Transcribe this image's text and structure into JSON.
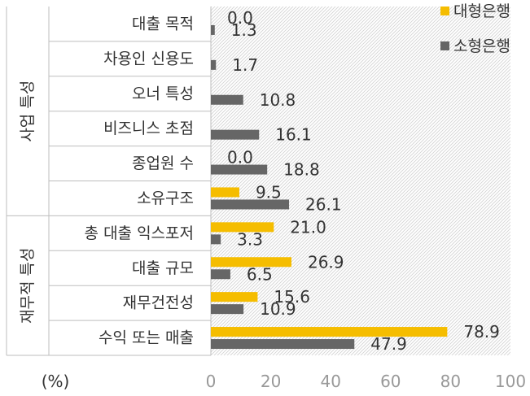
{
  "chart_data": {
    "type": "bar",
    "orientation": "horizontal",
    "unit_label": "(%)",
    "groups": [
      {
        "name": "사업 특성",
        "categories": [
          "대출 목적",
          "차용인 신용도",
          "오너 특성",
          "비즈니스 초점",
          "종업원 수",
          "소유구조"
        ]
      },
      {
        "name": "재무적 특성",
        "categories": [
          "총 대출 익스포저",
          "대출 규모",
          "재무건전성",
          "수익 또는 매출"
        ]
      }
    ],
    "categories": [
      "대출 목적",
      "차용인 신용도",
      "오너 특성",
      "비즈니스 초점",
      "종업원 수",
      "소유구조",
      "총 대출 익스포저",
      "대출 규모",
      "재무건전성",
      "수익 또는 매출"
    ],
    "series": [
      {
        "name": "대형은행",
        "color": "#F5BD00",
        "values": [
          0.0,
          null,
          null,
          null,
          0.0,
          9.5,
          21.0,
          26.9,
          15.6,
          78.9
        ],
        "labels": [
          "0.0",
          "",
          "",
          "",
          "0.0",
          "9.5",
          "21.0",
          "26.9",
          "15.6",
          "78.9"
        ]
      },
      {
        "name": "소형은행",
        "color": "#666666",
        "values": [
          1.3,
          1.7,
          10.8,
          16.1,
          18.8,
          26.1,
          3.3,
          6.5,
          10.9,
          47.9
        ],
        "labels": [
          "1.3",
          "1.7",
          "10.8",
          "16.1",
          "18.8",
          "26.1",
          "3.3",
          "6.5",
          "10.9",
          "47.9"
        ]
      }
    ],
    "xlim": [
      0,
      100
    ],
    "xticks": [
      "0",
      "20",
      "40",
      "60",
      "80",
      "100"
    ],
    "grid": false,
    "plot_background": "hatched",
    "legend_position": "top-right"
  }
}
